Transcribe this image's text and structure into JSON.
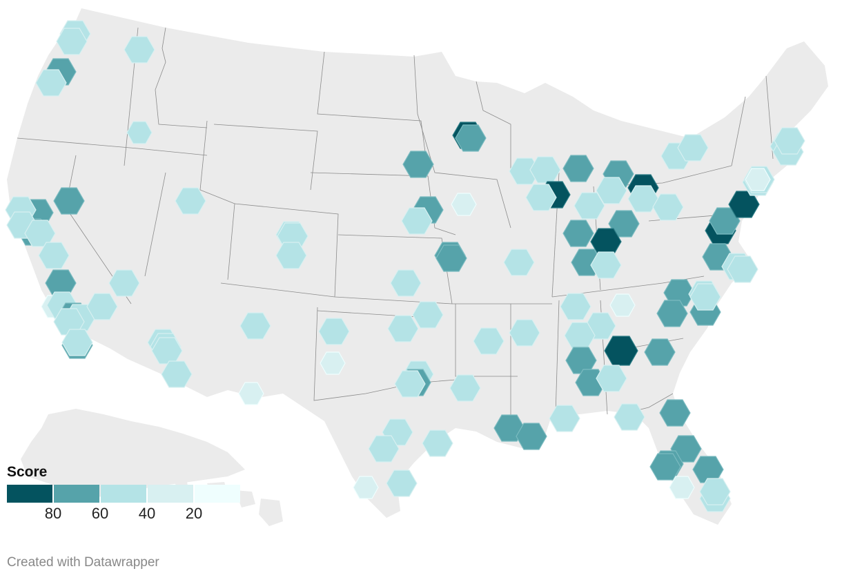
{
  "legend": {
    "title": "Score",
    "ticks": [
      "80",
      "60",
      "40",
      "20"
    ],
    "colors": [
      "#04535f",
      "#56a3aa",
      "#b4e3e6",
      "#d8f0f1",
      "#effefe"
    ]
  },
  "footer": {
    "credit": "Created with Datawrapper"
  },
  "map_colors": {
    "land": "#ebebeb",
    "state_border": "#888888",
    "score_80_plus": "#04535f",
    "score_60_80": "#56a3aa",
    "score_40_60": "#b4e3e6",
    "score_20_40": "#d8f0f1",
    "score_0_20": "#effefe"
  }
}
